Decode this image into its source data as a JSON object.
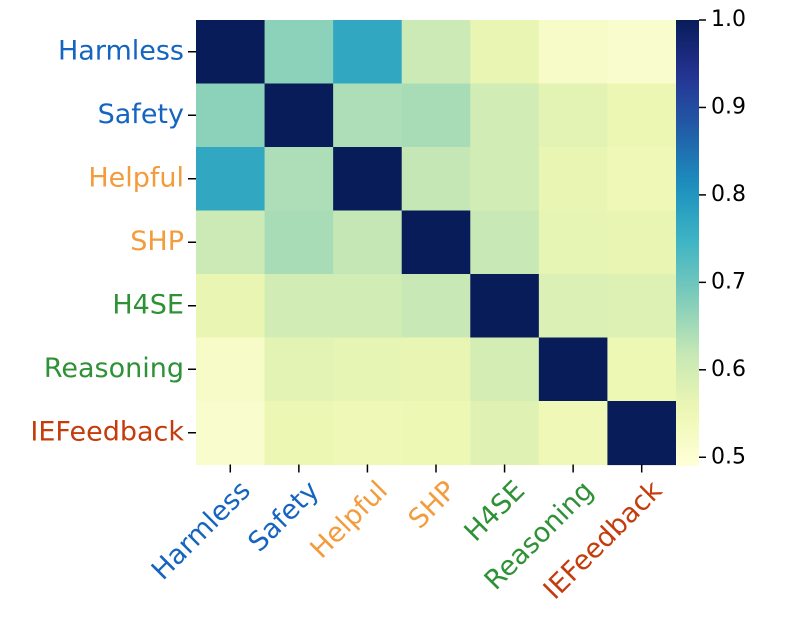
{
  "chart_data": {
    "type": "heatmap",
    "title": "",
    "xlabel": "",
    "ylabel": "",
    "categories": [
      "Harmless",
      "Safety",
      "Helpful",
      "SHP",
      "H4SE",
      "Reasoning",
      "IEFeedback"
    ],
    "label_colors": [
      "#1565c0",
      "#1565c0",
      "#f49b3c",
      "#f49b3c",
      "#2e9136",
      "#2e9136",
      "#c43c0c"
    ],
    "matrix": [
      [
        1.0,
        0.67,
        0.77,
        0.61,
        0.56,
        0.52,
        0.51
      ],
      [
        0.67,
        1.0,
        0.64,
        0.645,
        0.6,
        0.57,
        0.555
      ],
      [
        0.77,
        0.64,
        1.0,
        0.62,
        0.6,
        0.56,
        0.545
      ],
      [
        0.61,
        0.645,
        0.62,
        1.0,
        0.615,
        0.565,
        0.56
      ],
      [
        0.56,
        0.6,
        0.6,
        0.615,
        1.0,
        0.585,
        0.58
      ],
      [
        0.52,
        0.57,
        0.565,
        0.56,
        0.595,
        1.0,
        0.55
      ],
      [
        0.51,
        0.555,
        0.545,
        0.55,
        0.575,
        0.545,
        1.0
      ]
    ],
    "colorbar": {
      "min": 0.49,
      "max": 1.0,
      "ticks": [
        0.5,
        0.6,
        0.7,
        0.8,
        0.9,
        1.0
      ],
      "tick_labels": [
        "0.5",
        "0.6",
        "0.7",
        "0.8",
        "0.9",
        "1.0"
      ],
      "colormap": "YlGnBu"
    }
  }
}
